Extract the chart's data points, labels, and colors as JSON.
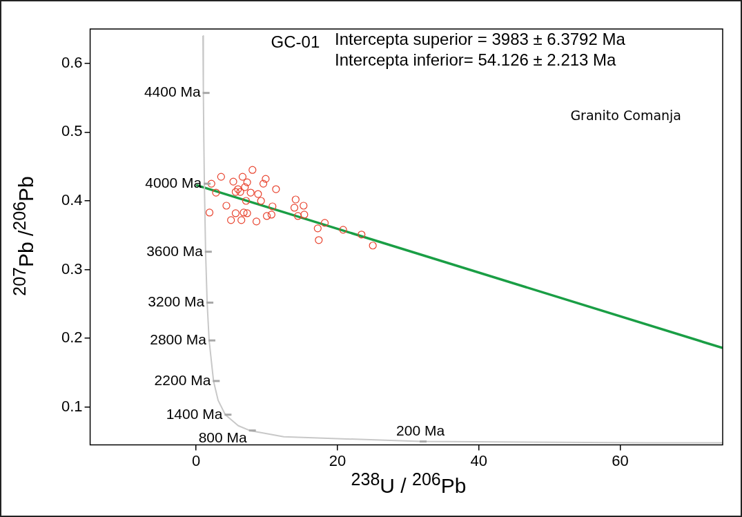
{
  "chart_data": {
    "type": "scatter",
    "xlabel": "$^{238}$U / $^{206}$Pb",
    "ylabel": "$^{207}$Pb /$^{206}$Pb",
    "xlim": [
      -15,
      74.5
    ],
    "ylim": [
      0.045,
      0.65
    ],
    "xticks": [
      0,
      20,
      40,
      60
    ],
    "yticks": [
      0.1,
      0.2,
      0.3,
      0.4,
      0.5,
      0.6
    ],
    "grid": false,
    "legend": false,
    "marker": "circle",
    "series": [
      {
        "type": "line",
        "marker": "none",
        "color": "#c8c8c8",
        "x": [
          0.961,
          1.021,
          1.089,
          1.163,
          1.337,
          1.555,
          1.838,
          2.458,
          3.106,
          4.122,
          5.96,
          7.57,
          12.4,
          31.73,
          63.97,
          74.46
        ],
        "values": [
          0.64,
          0.557,
          0.487,
          0.425,
          0.326,
          0.252,
          0.197,
          0.138,
          0.11,
          0.089,
          0.073,
          0.066,
          0.057,
          0.05,
          0.048,
          0.048
        ]
      },
      {
        "type": "line",
        "marker": "none",
        "color": "#1a9e45",
        "x": [
          0,
          74.5
        ],
        "values": [
          0.423,
          0.186
        ]
      },
      {
        "color": "#e8412c",
        "x": [
          2.16,
          2.81,
          3.53,
          1.89,
          4.28,
          5.26,
          5.59,
          5.92,
          6.24,
          6.57,
          6.9,
          7.22,
          7.71,
          7.97,
          7.06,
          6.73,
          5.59,
          4.93,
          6.4,
          7.22,
          8.53,
          8.76,
          9.18,
          9.51,
          9.84,
          10.0,
          10.8,
          10.66,
          11.3,
          14.08,
          13.9,
          14.4,
          15.2,
          15.3,
          17.2,
          18.2,
          17.35,
          20.8,
          23.4,
          25.0
        ],
        "values": [
          0.425,
          0.412,
          0.435,
          0.383,
          0.393,
          0.428,
          0.413,
          0.417,
          0.413,
          0.435,
          0.42,
          0.427,
          0.412,
          0.445,
          0.4,
          0.383,
          0.382,
          0.372,
          0.372,
          0.382,
          0.37,
          0.41,
          0.4,
          0.425,
          0.432,
          0.378,
          0.392,
          0.38,
          0.417,
          0.402,
          0.39,
          0.378,
          0.393,
          0.38,
          0.36,
          0.368,
          0.343,
          0.358,
          0.351,
          0.335
        ]
      }
    ],
    "annotations": [
      "GC-01",
      "Intercepta superior = 3983 ± 6.3792 Ma",
      "Intercepta inferior= 54.126 ± 2.213 Ma",
      "Granito Comanja",
      {
        "text": "4400 Ma",
        "x": 1.021,
        "y": 0.557
      },
      {
        "text": "4000 Ma",
        "x": 1.163,
        "y": 0.425
      },
      {
        "text": "3600 Ma",
        "x": 1.337,
        "y": 0.326
      },
      {
        "text": "3200 Ma",
        "x": 1.555,
        "y": 0.252
      },
      {
        "text": "2800 Ma",
        "x": 1.838,
        "y": 0.197
      },
      {
        "text": "2200 Ma",
        "x": 2.458,
        "y": 0.138
      },
      {
        "text": "1400 Ma",
        "x": 4.122,
        "y": 0.089
      },
      {
        "text": "800 Ma",
        "x": 7.57,
        "y": 0.066
      },
      {
        "text": "200 Ma",
        "x": 31.73,
        "y": 0.05
      }
    ]
  }
}
